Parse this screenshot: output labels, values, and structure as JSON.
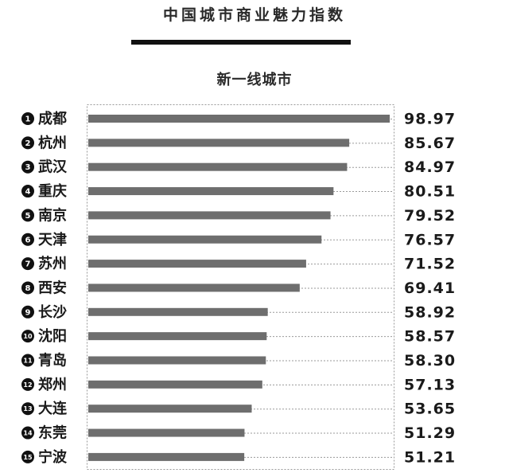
{
  "chart_data": {
    "type": "bar",
    "orientation": "horizontal",
    "title": "中国城市商业魅力指数",
    "subtitle": "新一线城市",
    "xlabel": "",
    "ylabel": "",
    "xlim": [
      0,
      100
    ],
    "grid": false,
    "categories": [
      "成都",
      "杭州",
      "武汉",
      "重庆",
      "南京",
      "天津",
      "苏州",
      "西安",
      "长沙",
      "沈阳",
      "青岛",
      "郑州",
      "大连",
      "东莞",
      "宁波"
    ],
    "ranks": [
      "1",
      "2",
      "3",
      "4",
      "5",
      "6",
      "7",
      "8",
      "9",
      "10",
      "11",
      "12",
      "13",
      "14",
      "15"
    ],
    "values": [
      98.97,
      85.67,
      84.97,
      80.51,
      79.52,
      76.57,
      71.52,
      69.41,
      58.92,
      58.57,
      58.3,
      57.13,
      53.65,
      51.29,
      51.21
    ],
    "value_labels": [
      "98.97",
      "85.67",
      "84.97",
      "80.51",
      "79.52",
      "76.57",
      "71.52",
      "69.41",
      "58.92",
      "58.57",
      "58.30",
      "57.13",
      "53.65",
      "51.29",
      "51.21"
    ],
    "colors": {
      "bar": "#6e6e6e",
      "badge": "#111111",
      "text": "#1a1a1a"
    }
  }
}
